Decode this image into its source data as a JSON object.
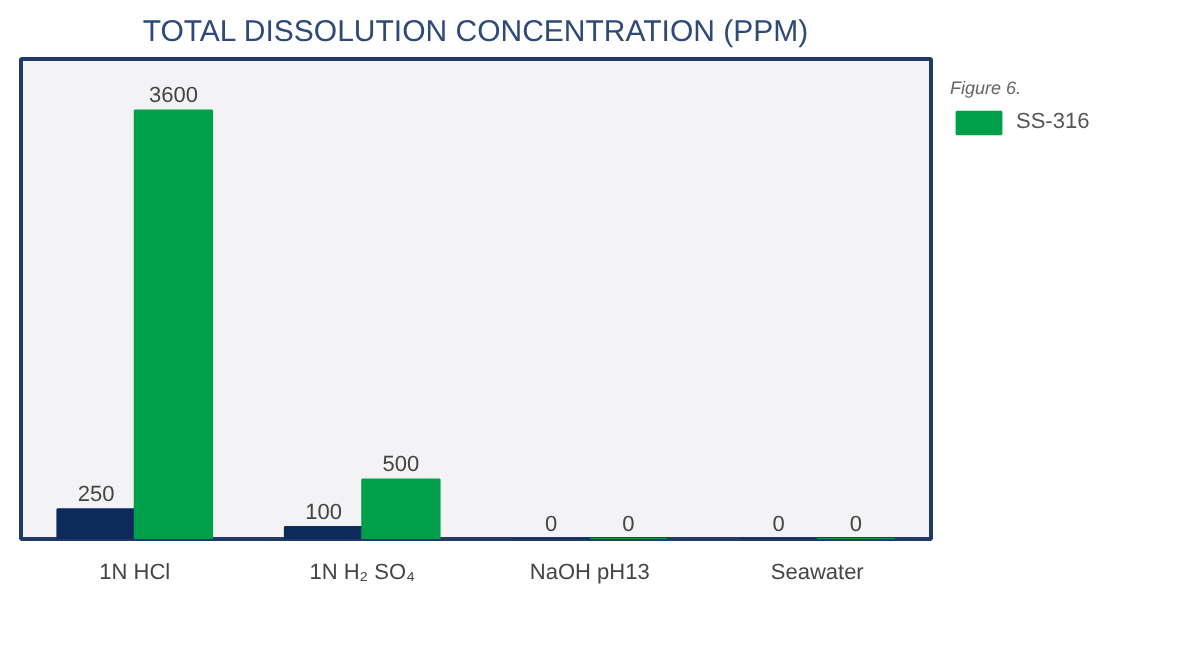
{
  "chart_data": {
    "type": "bar",
    "title": "TOTAL DISSOLUTION CONCENTRATION (PPM)",
    "categories": [
      "1N HCl",
      "1N H₂ SO₄",
      "NaOH pH13",
      "Seawater"
    ],
    "series": [
      {
        "color": "#0d2a5c",
        "values": [
          250,
          100,
          0,
          0
        ]
      },
      {
        "name": "SS-316",
        "color": "#00a04a",
        "values": [
          3600,
          500,
          0,
          0
        ]
      }
    ],
    "data_labels": true,
    "legend": "right",
    "grid": false,
    "annotations": [
      "Figure 6."
    ]
  }
}
